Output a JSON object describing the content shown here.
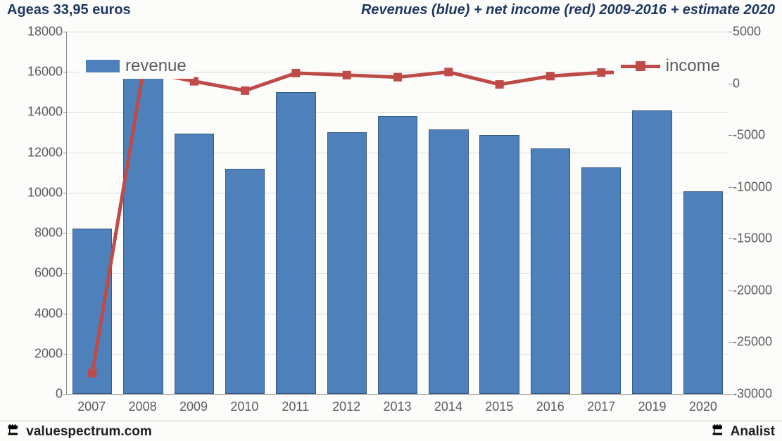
{
  "header": {
    "left": "Ageas 33,95 euros",
    "right": "Revenues (blue) + net income (red) 2009-2016 + estimate 2020"
  },
  "chart": {
    "type": "bar+line",
    "background_color": "#fcfcfa",
    "grid_color": "#d9d9d9",
    "axis_color": "#888888",
    "bar_color": "#4e80bc",
    "bar_border_color": "#355a86",
    "line_color": "#be4b48",
    "line_width": 5,
    "marker_size": 12,
    "label_fontsize": 18,
    "legend_fontsize": 24,
    "bar_width_pct": 78,
    "categories": [
      "2007",
      "2008",
      "2009",
      "2010",
      "2011",
      "2012",
      "2013",
      "2014",
      "2015",
      "2016",
      "2017",
      "2019",
      "2020"
    ],
    "revenue_values": [
      8200,
      15850,
      12950,
      11200,
      15000,
      13000,
      13800,
      13150,
      12850,
      12200,
      11250,
      14100,
      10050
    ],
    "income_values": [
      -28000,
      1200,
      200,
      -700,
      1000,
      800,
      600,
      1100,
      -100,
      700,
      1050,
      1100,
      1150
    ],
    "left_axis": {
      "min": 0,
      "max": 18000,
      "step": 2000
    },
    "right_axis": {
      "min": -30000,
      "max": 5000,
      "step": 5000
    },
    "legend": {
      "revenue": "revenue",
      "income": "income"
    }
  },
  "footer": {
    "left": "valuespectrum.com",
    "right": "Analist"
  },
  "colors": {
    "header_text": "#1f3862",
    "tick_text": "#5c5c5c"
  }
}
